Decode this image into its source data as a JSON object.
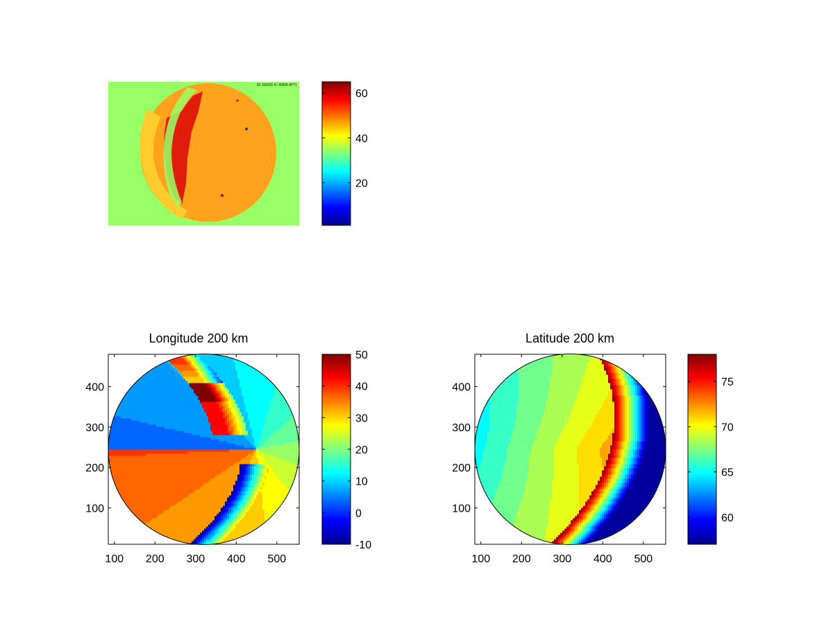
{
  "figure": {
    "background": "#ffffff",
    "colormap": "jet"
  },
  "chart_data": [
    {
      "type": "heatmap",
      "title": "",
      "description_of_content": "",
      "axes_visible": false,
      "colorbar": {
        "range": [
          1,
          65
        ],
        "ticks": [
          20,
          40,
          60
        ],
        "tick_labels": [
          "20",
          "40",
          "60"
        ]
      },
      "image": {
        "background_value": 33,
        "disk_value_range": [
          38,
          60
        ],
        "band_value": 62,
        "header_text": "20 160525 IC 40905 AY71"
      }
    },
    {
      "type": "heatmap",
      "title": "Longitude 200 km",
      "contour_lines": true,
      "xlim": [
        85,
        555
      ],
      "ylim": [
        10,
        480
      ],
      "xticks": [
        100,
        200,
        300,
        400,
        500
      ],
      "xtick_labels": [
        "100",
        "200",
        "300",
        "400",
        "500"
      ],
      "yticks": [
        100,
        200,
        300,
        400
      ],
      "ytick_labels": [
        "100",
        "200",
        "300",
        "400"
      ],
      "disk": {
        "center": [
          320,
          245
        ],
        "radius": 235
      },
      "colorbar": {
        "range": [
          -10,
          50
        ],
        "ticks": [
          -10,
          0,
          10,
          20,
          30,
          40,
          50
        ],
        "tick_labels": [
          "-10",
          "0",
          "10",
          "20",
          "30",
          "40",
          "50"
        ]
      }
    },
    {
      "type": "heatmap",
      "title": "Latitude 200 km",
      "contour_lines": true,
      "xlim": [
        85,
        555
      ],
      "ylim": [
        10,
        480
      ],
      "xticks": [
        100,
        200,
        300,
        400,
        500
      ],
      "xtick_labels": [
        "100",
        "200",
        "300",
        "400",
        "500"
      ],
      "yticks": [
        100,
        200,
        300,
        400
      ],
      "ytick_labels": [
        "100",
        "200",
        "300",
        "400"
      ],
      "disk": {
        "center": [
          320,
          245
        ],
        "radius": 235
      },
      "colorbar": {
        "range": [
          57,
          78
        ],
        "ticks": [
          60,
          65,
          70,
          75
        ],
        "tick_labels": [
          "60",
          "65",
          "70",
          "75"
        ]
      }
    }
  ]
}
